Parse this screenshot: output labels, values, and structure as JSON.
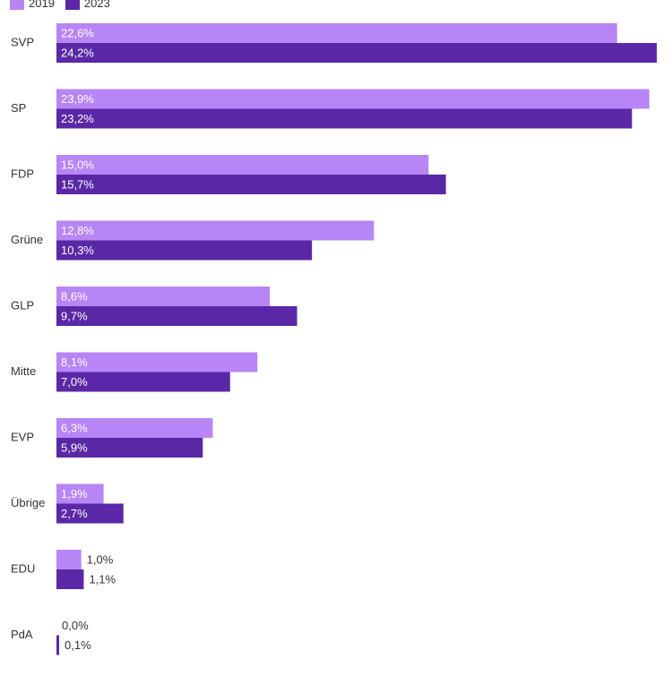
{
  "chart_data": {
    "type": "bar",
    "orientation": "horizontal",
    "categories": [
      "SVP",
      "SP",
      "FDP",
      "Grüne",
      "GLP",
      "Mitte",
      "EVP",
      "Übrige",
      "EDU",
      "PdA"
    ],
    "series": [
      {
        "name": "2019",
        "color": "#b785f5",
        "values": [
          22.6,
          23.9,
          15.0,
          12.8,
          8.6,
          8.1,
          6.3,
          1.9,
          1.0,
          0.0
        ],
        "labels": [
          "22,6%",
          "23,9%",
          "15,0%",
          "12,8%",
          "8,6%",
          "8,1%",
          "6,3%",
          "1,9%",
          "1,0%",
          "0,0%"
        ]
      },
      {
        "name": "2023",
        "color": "#5a28a6",
        "values": [
          24.2,
          23.2,
          15.7,
          10.3,
          9.7,
          7.0,
          5.9,
          2.7,
          1.1,
          0.1
        ],
        "labels": [
          "24,2%",
          "23,2%",
          "15,7%",
          "10,3%",
          "9,7%",
          "7,0%",
          "5,9%",
          "2,7%",
          "1,1%",
          "0,1%"
        ]
      }
    ],
    "xlim": [
      0,
      24.2
    ],
    "legend": {
      "placement": "top-left",
      "entries": [
        "2019",
        "2023"
      ]
    },
    "grid": false,
    "title": "",
    "xlabel": "",
    "ylabel": ""
  }
}
